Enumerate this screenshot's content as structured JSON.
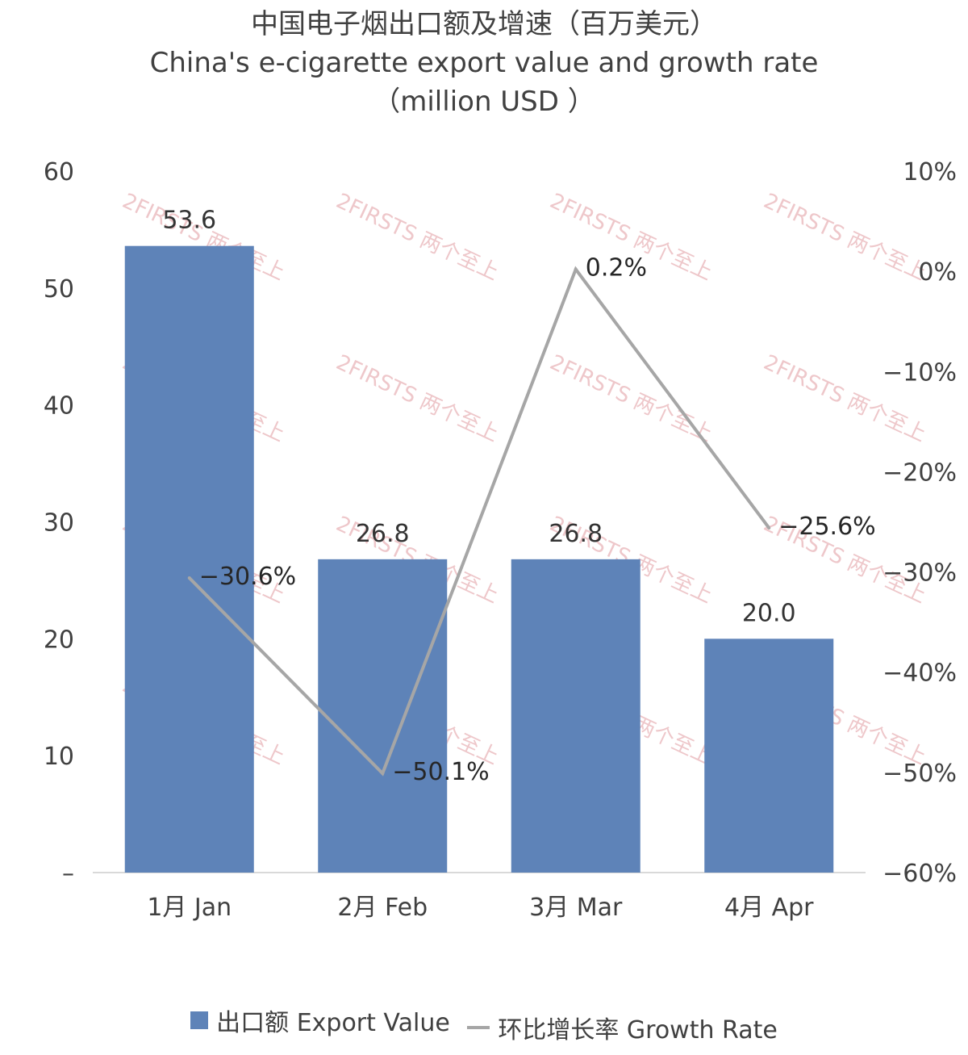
{
  "chart_data": {
    "type": "bar+line",
    "title_zh": "中国电子烟出口额及增速（百万美元）",
    "title_en": "China's e-cigarette export value and growth rate",
    "title_unit": "（million USD ）",
    "categories": [
      "1月 Jan",
      "2月 Feb",
      "3月 Mar",
      "4月 Apr"
    ],
    "series": [
      {
        "name": "出口额 Export Value",
        "type": "bar",
        "axis": "left",
        "values": [
          53.6,
          26.8,
          26.8,
          20.0
        ],
        "labels": [
          "53.6",
          "26.8",
          "26.8",
          "20.0"
        ],
        "color": "#5e83b8"
      },
      {
        "name": "环比增长率 Growth Rate",
        "type": "line",
        "axis": "right",
        "values": [
          -30.6,
          -50.1,
          0.2,
          -25.6
        ],
        "labels": [
          "−30.6%",
          "−50.1%",
          "0.2%",
          "−25.6%"
        ],
        "color": "#a6a6a6"
      }
    ],
    "y_left": {
      "min": 0,
      "max": 60,
      "ticks": [
        0,
        10,
        20,
        30,
        40,
        50,
        60
      ],
      "tick_labels": [
        "–",
        "10",
        "20",
        "30",
        "40",
        "50",
        "60"
      ]
    },
    "y_right": {
      "min": -60,
      "max": 10,
      "ticks": [
        -60,
        -50,
        -40,
        -30,
        -20,
        -10,
        0,
        10
      ],
      "tick_labels": [
        "−60%",
        "−50%",
        "−40%",
        "−30%",
        "−20%",
        "−10%",
        "0%",
        "10%"
      ]
    },
    "grid": false,
    "legend_position": "bottom",
    "watermark_text": "2FIRSTS 两个至上",
    "watermark_color": "#e8b4b8"
  }
}
